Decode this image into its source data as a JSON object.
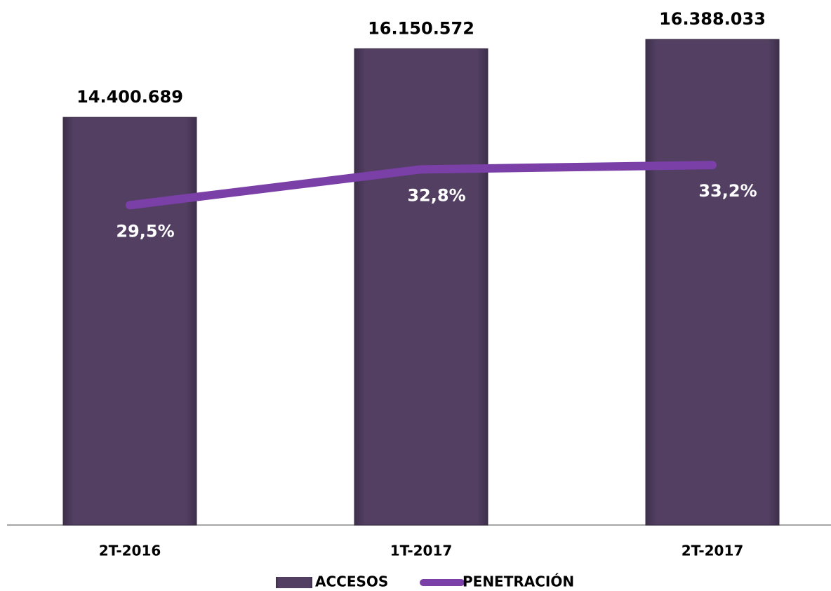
{
  "chart_data": {
    "type": "bar_line",
    "categories": [
      "2T-2016",
      "1T-2017",
      "2T-2017"
    ],
    "series": [
      {
        "name": "ACCESOS",
        "type": "bar",
        "color": "#523f62",
        "values": [
          14400689,
          16150572,
          16388033
        ],
        "value_labels": [
          "14.400.689",
          "16.150.572",
          "16.388.033"
        ]
      },
      {
        "name": "PENETRACIÓN",
        "type": "line",
        "axis": "y2",
        "color": "#7b3fa8",
        "values": [
          29.5,
          32.8,
          33.2
        ],
        "value_labels": [
          "29,5%",
          "32,8%",
          "33,2%"
        ]
      }
    ],
    "ylim": [
      4000000,
      17000000
    ],
    "y2lim": [
      0,
      47
    ],
    "legend": "bottom"
  }
}
